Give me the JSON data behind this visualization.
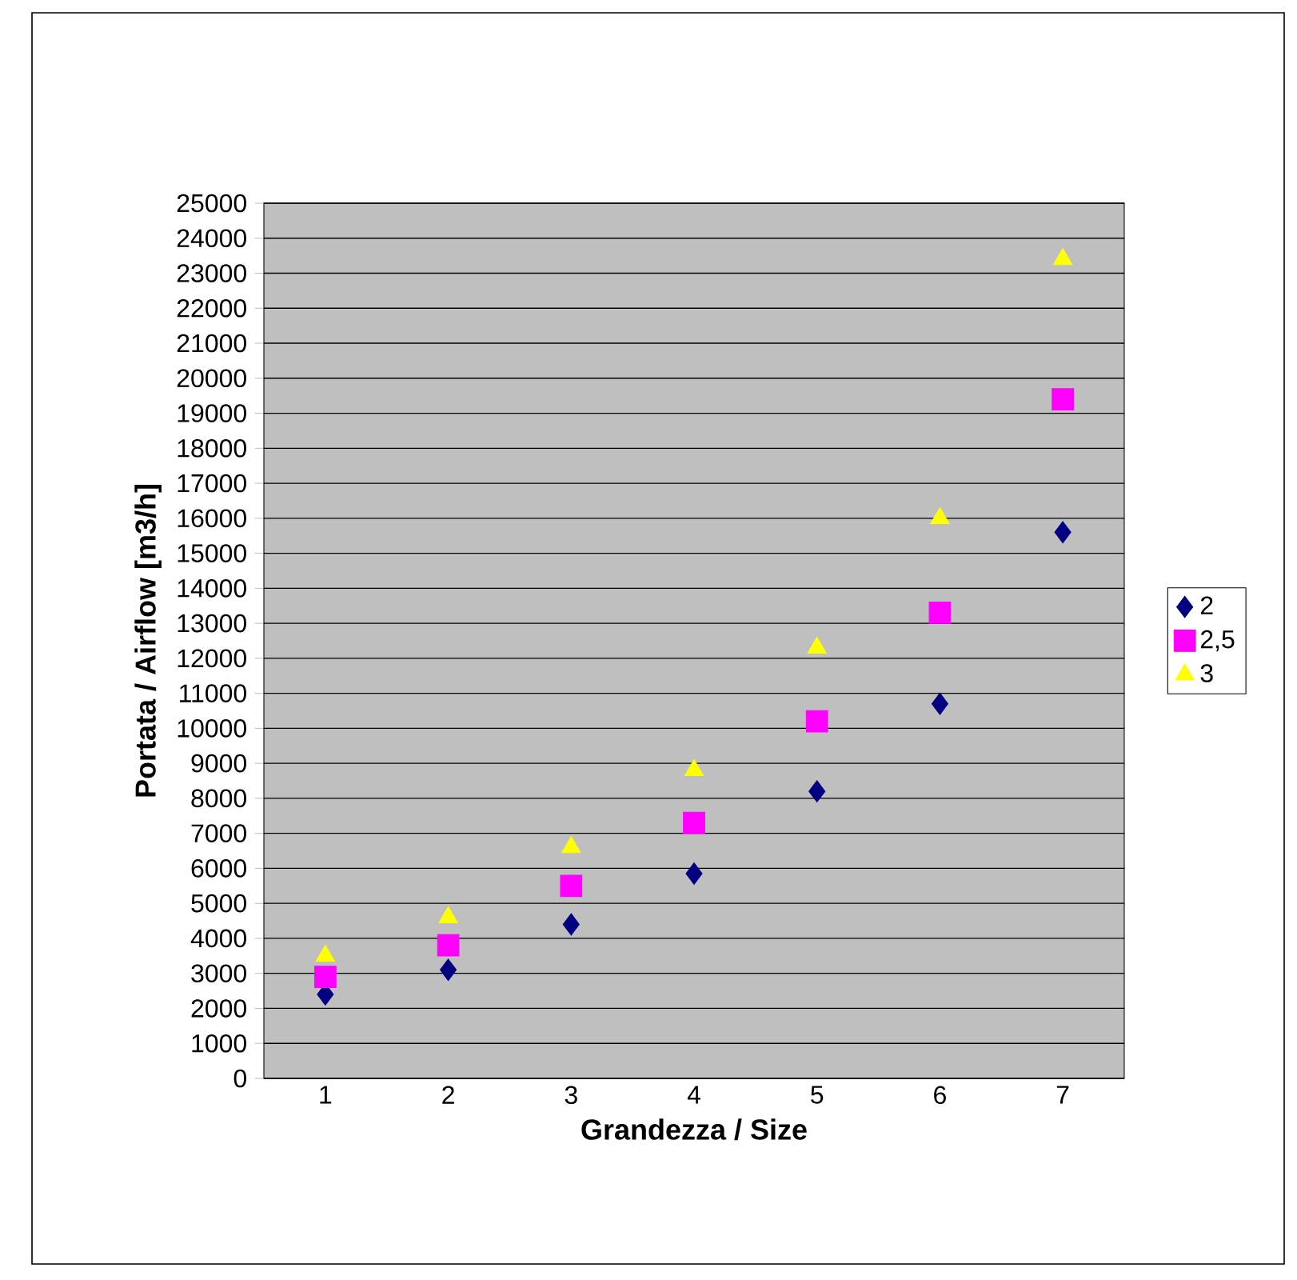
{
  "chart_data": {
    "type": "scatter",
    "xlabel": "Grandezza / Size",
    "ylabel": "Portata / Airflow [m3/h]",
    "categories": [
      "1",
      "2",
      "3",
      "4",
      "5",
      "6",
      "7"
    ],
    "series": [
      {
        "name": "2",
        "color": "#000080",
        "marker": "diamond",
        "values": [
          2400,
          3100,
          4400,
          5850,
          8200,
          10700,
          15600
        ]
      },
      {
        "name": "2,5",
        "color": "#ff00ff",
        "marker": "square",
        "values": [
          2900,
          3800,
          5500,
          7300,
          10200,
          13300,
          19400
        ]
      },
      {
        "name": "3",
        "color": "#ffff00",
        "marker": "triangle",
        "values": [
          3500,
          4600,
          6600,
          8800,
          12300,
          16000,
          23400
        ]
      }
    ],
    "ylim": [
      0,
      25000
    ],
    "yticks": [
      0,
      1000,
      2000,
      3000,
      4000,
      5000,
      6000,
      7000,
      8000,
      9000,
      10000,
      11000,
      12000,
      13000,
      14000,
      15000,
      16000,
      17000,
      18000,
      19000,
      20000,
      21000,
      22000,
      23000,
      24000,
      25000
    ],
    "grid": "y",
    "legend": "right"
  }
}
